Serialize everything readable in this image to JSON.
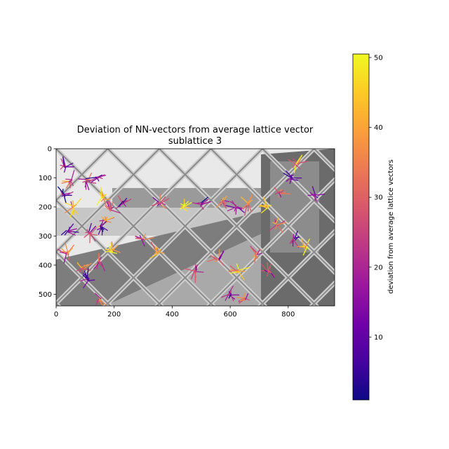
{
  "chart_data": {
    "type": "scatter",
    "title_line1": "Deviation of NN-vectors from average lattice vector",
    "title_line2": "sublattice 3",
    "image_extent": {
      "x": [
        0,
        960
      ],
      "y": [
        540,
        0
      ]
    },
    "x_ticks": [
      0,
      200,
      400,
      600,
      800
    ],
    "y_ticks": [
      0,
      100,
      200,
      300,
      400,
      500
    ],
    "colorbar": {
      "label": "deviation from average lattice vectors",
      "range": [
        1,
        50.5
      ],
      "ticks": [
        10,
        20,
        30,
        40,
        50
      ],
      "colormap": "plasma",
      "stops": [
        "#0d0887",
        "#46039f",
        "#7201a8",
        "#9c179e",
        "#bd3786",
        "#d8576b",
        "#ed7953",
        "#fb9f3a",
        "#fdca26",
        "#f0f921"
      ]
    },
    "clusters": [
      {
        "x": 30,
        "y": 60,
        "v": 18
      },
      {
        "x": 50,
        "y": 110,
        "v": 30
      },
      {
        "x": 25,
        "y": 160,
        "v": 12
      },
      {
        "x": 60,
        "y": 200,
        "v": 35
      },
      {
        "x": 105,
        "y": 110,
        "v": 22
      },
      {
        "x": 140,
        "y": 100,
        "v": 15
      },
      {
        "x": 160,
        "y": 170,
        "v": 40
      },
      {
        "x": 190,
        "y": 210,
        "v": 25
      },
      {
        "x": 170,
        "y": 250,
        "v": 33
      },
      {
        "x": 40,
        "y": 285,
        "v": 14
      },
      {
        "x": 115,
        "y": 290,
        "v": 20
      },
      {
        "x": 155,
        "y": 270,
        "v": 11
      },
      {
        "x": 40,
        "y": 360,
        "v": 28
      },
      {
        "x": 90,
        "y": 410,
        "v": 38
      },
      {
        "x": 110,
        "y": 450,
        "v": 16
      },
      {
        "x": 150,
        "y": 390,
        "v": 24
      },
      {
        "x": 190,
        "y": 350,
        "v": 42
      },
      {
        "x": 150,
        "y": 520,
        "v": 31
      },
      {
        "x": 230,
        "y": 185,
        "v": 19
      },
      {
        "x": 300,
        "y": 310,
        "v": 27
      },
      {
        "x": 350,
        "y": 355,
        "v": 36
      },
      {
        "x": 360,
        "y": 190,
        "v": 23
      },
      {
        "x": 440,
        "y": 200,
        "v": 45
      },
      {
        "x": 500,
        "y": 190,
        "v": 13
      },
      {
        "x": 570,
        "y": 180,
        "v": 29
      },
      {
        "x": 620,
        "y": 200,
        "v": 21
      },
      {
        "x": 660,
        "y": 190,
        "v": 34
      },
      {
        "x": 730,
        "y": 200,
        "v": 41
      },
      {
        "x": 770,
        "y": 150,
        "v": 26
      },
      {
        "x": 810,
        "y": 100,
        "v": 17
      },
      {
        "x": 830,
        "y": 50,
        "v": 37
      },
      {
        "x": 890,
        "y": 160,
        "v": 22
      },
      {
        "x": 760,
        "y": 260,
        "v": 32
      },
      {
        "x": 820,
        "y": 310,
        "v": 15
      },
      {
        "x": 860,
        "y": 340,
        "v": 44
      },
      {
        "x": 690,
        "y": 360,
        "v": 28
      },
      {
        "x": 730,
        "y": 420,
        "v": 19
      },
      {
        "x": 630,
        "y": 420,
        "v": 39
      },
      {
        "x": 560,
        "y": 380,
        "v": 24
      },
      {
        "x": 600,
        "y": 500,
        "v": 12
      },
      {
        "x": 650,
        "y": 515,
        "v": 30
      },
      {
        "x": 480,
        "y": 420,
        "v": 18
      }
    ]
  }
}
